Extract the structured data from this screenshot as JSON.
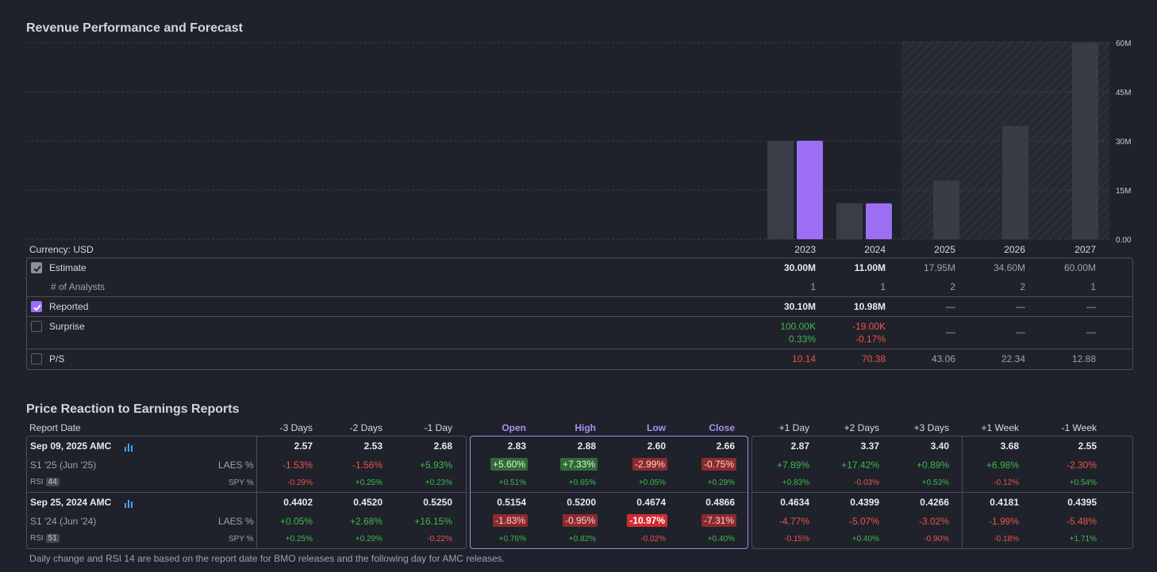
{
  "revenue": {
    "title": "Revenue Performance and Forecast",
    "currency_label": "Currency: USD",
    "years": [
      "2023",
      "2024",
      "2025",
      "2026",
      "2027"
    ],
    "rows": {
      "estimate": {
        "label": "Estimate",
        "values": [
          "30.00M",
          "11.00M",
          "17.95M",
          "34.60M",
          "60.00M"
        ]
      },
      "analysts": {
        "label": "# of Analysts",
        "values": [
          "1",
          "1",
          "2",
          "2",
          "1"
        ]
      },
      "reported": {
        "label": "Reported",
        "values": [
          "30.10M",
          "10.98M",
          "—",
          "—",
          "—"
        ]
      },
      "surprise": {
        "label": "Surprise",
        "values": [
          "100.00K",
          "-19.00K",
          "—",
          "—",
          "—"
        ],
        "pct": [
          "0.33%",
          "-0.17%"
        ]
      },
      "ps": {
        "label": "P/S",
        "values": [
          "10.14",
          "70.38",
          "43.06",
          "22.34",
          "12.88"
        ]
      }
    }
  },
  "chart_data": {
    "type": "bar",
    "title": "Revenue Performance and Forecast",
    "categories": [
      "2023",
      "2024",
      "2025",
      "2026",
      "2027"
    ],
    "series": [
      {
        "name": "Estimate",
        "values": [
          30.0,
          11.0,
          17.95,
          34.6,
          60.0
        ]
      },
      {
        "name": "Reported",
        "values": [
          30.1,
          10.98,
          null,
          null,
          null
        ]
      }
    ],
    "ylim": [
      0,
      60
    ],
    "ytick_labels": [
      "60M",
      "45M",
      "30M",
      "15M",
      "0.00"
    ],
    "forecast_from": "2025",
    "colors": {
      "estimate": "#3a3d47",
      "reported": "#9d6ff5",
      "forecast": "#393c45"
    }
  },
  "price": {
    "title": "Price Reaction to Earnings Reports",
    "headers": {
      "report_date": "Report Date",
      "cols": [
        "-3 Days",
        "-2 Days",
        "-1 Day",
        "Open",
        "High",
        "Low",
        "Close",
        "+1 Day",
        "+2 Days",
        "+3 Days",
        "+1 Week",
        "-1 Week"
      ]
    },
    "labels": {
      "laes": "LAES %",
      "spy": "SPY %",
      "rsi": "RSI"
    },
    "reports": [
      {
        "date": "Sep 09, 2025 AMC",
        "period": "S1 '25 (Jun '25)",
        "rsi": "44",
        "prices": [
          "2.57",
          "2.53",
          "2.68",
          "2.83",
          "2.88",
          "2.60",
          "2.66",
          "2.87",
          "3.37",
          "3.40",
          "3.68",
          "2.55"
        ],
        "laes": [
          "-1.53%",
          "-1.56%",
          "+5.93%",
          "+5.60%",
          "+7.33%",
          "-2.99%",
          "-0.75%",
          "+7.89%",
          "+17.42%",
          "+0.89%",
          "+6.98%",
          "-2.30%"
        ],
        "spy": [
          "-0.29%",
          "+0.25%",
          "+0.23%",
          "+0.51%",
          "+0.65%",
          "+0.05%",
          "+0.29%",
          "+0.83%",
          "-0.03%",
          "+0.53%",
          "-0.12%",
          "+0.54%"
        ]
      },
      {
        "date": "Sep 25, 2024 AMC",
        "period": "S1 '24 (Jun '24)",
        "rsi": "51",
        "prices": [
          "0.4402",
          "0.4520",
          "0.5250",
          "0.5154",
          "0.5200",
          "0.4674",
          "0.4866",
          "0.4634",
          "0.4399",
          "0.4266",
          "0.4181",
          "0.4395"
        ],
        "laes": [
          "+0.05%",
          "+2.68%",
          "+16.15%",
          "-1.83%",
          "-0.95%",
          "-10.97%",
          "-7.31%",
          "-4.77%",
          "-5.07%",
          "-3.02%",
          "-1.99%",
          "-5.48%"
        ],
        "spy": [
          "+0.25%",
          "+0.29%",
          "-0.22%",
          "+0.76%",
          "+0.82%",
          "-0.02%",
          "+0.40%",
          "-0.15%",
          "+0.40%",
          "-0.90%",
          "-0.18%",
          "+1.71%"
        ]
      }
    ],
    "footnote": "Daily change and RSI 14 are based on the report date for BMO releases and the following day for AMC releases."
  },
  "colors": {
    "accent": "#9d6ff5",
    "green": "#3fb950",
    "red": "#f0524f",
    "grid": "#3a3e4a"
  }
}
